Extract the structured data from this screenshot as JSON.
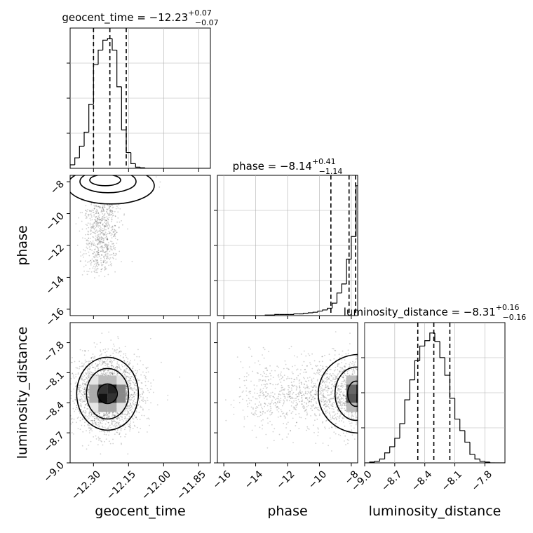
{
  "chart_data": [
    {
      "type": "histogram",
      "title": "geocent_time = −12.23",
      "title_superscript": "+0.07",
      "title_subscript": "−0.07",
      "xlim": [
        -12.4,
        -11.8
      ],
      "quantiles": [
        -12.3,
        -12.23,
        -12.16
      ],
      "bin_edges": [
        -12.4,
        -12.38,
        -12.36,
        -12.34,
        -12.32,
        -12.3,
        -12.28,
        -12.26,
        -12.24,
        -12.22,
        -12.2,
        -12.18,
        -12.16,
        -12.14,
        -12.12,
        -12.1,
        -12.08,
        -12.06,
        -12.04,
        -12.02,
        -12.0,
        -11.98,
        -11.96,
        -11.94,
        -11.92,
        -11.9,
        -11.88,
        -11.86,
        -11.84,
        -11.82,
        -11.8
      ],
      "counts": [
        6,
        18,
        38,
        62,
        110,
        178,
        203,
        220,
        223,
        203,
        140,
        66,
        27,
        8,
        2,
        1,
        0,
        0,
        0,
        0,
        0,
        0,
        0,
        0,
        0,
        0,
        0,
        0,
        0,
        0
      ],
      "grid": true
    },
    {
      "type": "scatter-density",
      "x_param": "geocent_time",
      "y_param": "phase",
      "xlim": [
        -12.4,
        -11.8
      ],
      "ylim": [
        -16.4,
        -7.6
      ],
      "density_center": [
        -12.25,
        -7.9
      ],
      "levels": 3
    },
    {
      "type": "histogram",
      "title": "phase = −8.14",
      "title_superscript": "+0.41",
      "title_subscript": "−1.14",
      "xlim": [
        -16.4,
        -7.6
      ],
      "quantiles": [
        -9.28,
        -8.14,
        -7.73
      ],
      "bin_edges": [
        -16.4,
        -16.1,
        -15.8,
        -15.5,
        -15.2,
        -14.9,
        -14.6,
        -14.3,
        -14.0,
        -13.7,
        -13.4,
        -13.1,
        -12.8,
        -12.5,
        -12.2,
        -11.9,
        -11.6,
        -11.3,
        -11.0,
        -10.7,
        -10.4,
        -10.1,
        -9.8,
        -9.5,
        -9.2,
        -8.9,
        -8.6,
        -8.3,
        -8.0,
        -7.7,
        -7.6
      ],
      "counts": [
        0,
        0,
        0,
        0,
        0,
        0,
        0,
        0,
        0,
        0,
        1,
        1,
        2,
        2,
        2,
        2,
        3,
        3,
        4,
        5,
        6,
        8,
        10,
        13,
        22,
        40,
        56,
        100,
        140,
        230
      ],
      "grid": true
    },
    {
      "type": "scatter-density",
      "x_param": "geocent_time",
      "y_param": "luminosity_distance",
      "xlim": [
        -12.4,
        -11.8
      ],
      "ylim": [
        -9.0,
        -7.6
      ],
      "density_center": [
        -12.24,
        -8.31
      ],
      "levels": 3
    },
    {
      "type": "scatter-density",
      "x_param": "phase",
      "y_param": "luminosity_distance",
      "xlim": [
        -16.4,
        -7.6
      ],
      "ylim": [
        -9.0,
        -7.6
      ],
      "density_center": [
        -7.7,
        -8.31
      ],
      "levels": 3
    },
    {
      "type": "histogram",
      "title": "luminosity_distance = −8.31",
      "title_superscript": "+0.16",
      "title_subscript": "−0.16",
      "xlim": [
        -9.0,
        -7.6
      ],
      "quantiles": [
        -8.47,
        -8.31,
        -8.15
      ],
      "bin_edges": [
        -9.0,
        -8.95,
        -8.9,
        -8.85,
        -8.8,
        -8.75,
        -8.7,
        -8.65,
        -8.6,
        -8.55,
        -8.5,
        -8.45,
        -8.4,
        -8.35,
        -8.3,
        -8.25,
        -8.2,
        -8.15,
        -8.1,
        -8.05,
        -8.0,
        -7.95,
        -7.9,
        -7.85,
        -7.8,
        -7.75,
        -7.7,
        -7.65,
        -7.6
      ],
      "counts": [
        0,
        1,
        2,
        5,
        13,
        21,
        32,
        51,
        82,
        108,
        133,
        152,
        159,
        169,
        158,
        137,
        114,
        84,
        57,
        42,
        27,
        11,
        5,
        2,
        1,
        0,
        0,
        0
      ],
      "grid": true
    }
  ],
  "axes": {
    "geocent_time": {
      "label": "geocent_time",
      "ticks": [
        -12.3,
        -12.15,
        -12.0,
        -11.85
      ],
      "tick_labels": [
        "−12.30",
        "−12.15",
        "−12.00",
        "−11.85"
      ]
    },
    "phase": {
      "label": "phase",
      "ticks": [
        -16,
        -14,
        -12,
        -10,
        -8
      ],
      "tick_labels": [
        "−16",
        "−14",
        "−12",
        "−10",
        "−8"
      ]
    },
    "luminosity_distance": {
      "label": "luminosity_distance",
      "ticks": [
        -9.0,
        -8.7,
        -8.4,
        -8.1,
        -7.8
      ],
      "tick_labels": [
        "−9.0",
        "−8.7",
        "−8.4",
        "−8.1",
        "−7.8"
      ]
    }
  }
}
